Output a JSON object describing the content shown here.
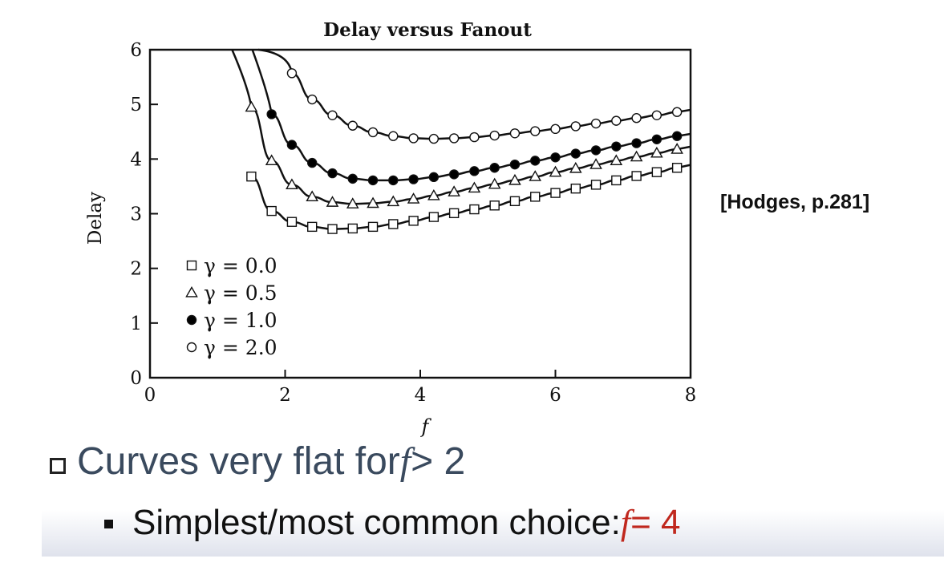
{
  "slide": {
    "citation": "[Hodges, p.281]",
    "bullet1": {
      "text": "Curves very flat for ",
      "var": "f",
      "tail": " > 2"
    },
    "bullet2": {
      "text": "Simplest/most common choice: ",
      "var": "f",
      "tail": " = 4"
    },
    "colors": {
      "heading": "#3a4a5e",
      "accent": "#c0281e"
    }
  },
  "chart_data": {
    "type": "line",
    "title": "Delay versus Fanout",
    "xlabel": "f",
    "ylabel": "Delay",
    "xlim": [
      0,
      8
    ],
    "ylim": [
      0,
      6
    ],
    "xticks": [
      0,
      2,
      4,
      6,
      8
    ],
    "yticks": [
      0,
      1,
      2,
      3,
      4,
      5,
      6
    ],
    "grid": false,
    "legend_position": "bottom-left",
    "series": [
      {
        "name": "γ = 0.0",
        "marker": "square",
        "marker_fill": "#ffffff",
        "x": [
          1.5,
          1.8,
          2.1,
          2.4,
          2.7,
          3.0,
          3.3,
          3.6,
          3.9,
          4.2,
          4.5,
          4.8,
          5.1,
          5.4,
          5.7,
          6.0,
          6.3,
          6.6,
          6.9,
          7.2,
          7.5,
          7.8
        ],
        "y": [
          3.68,
          3.05,
          2.85,
          2.76,
          2.72,
          2.73,
          2.76,
          2.81,
          2.87,
          2.94,
          3.01,
          3.08,
          3.15,
          3.23,
          3.31,
          3.38,
          3.46,
          3.53,
          3.61,
          3.69,
          3.76,
          3.84
        ]
      },
      {
        "name": "γ = 0.5",
        "marker": "triangle",
        "marker_fill": "#ffffff",
        "x": [
          1.5,
          1.8,
          2.1,
          2.4,
          2.7,
          3.0,
          3.3,
          3.6,
          3.9,
          4.2,
          4.5,
          4.8,
          5.1,
          5.4,
          5.7,
          6.0,
          6.3,
          6.6,
          6.9,
          7.2,
          7.5,
          7.8
        ],
        "y": [
          4.95,
          3.97,
          3.53,
          3.31,
          3.21,
          3.18,
          3.19,
          3.22,
          3.27,
          3.33,
          3.4,
          3.47,
          3.54,
          3.61,
          3.68,
          3.76,
          3.83,
          3.9,
          3.97,
          4.04,
          4.11,
          4.18
        ]
      },
      {
        "name": "γ = 1.0",
        "marker": "circle",
        "marker_fill": "#000000",
        "x": [
          1.8,
          2.1,
          2.4,
          2.7,
          3.0,
          3.3,
          3.6,
          3.9,
          4.2,
          4.5,
          4.8,
          5.1,
          5.4,
          5.7,
          6.0,
          6.3,
          6.6,
          6.9,
          7.2,
          7.5,
          7.8
        ],
        "y": [
          4.82,
          4.26,
          3.93,
          3.74,
          3.64,
          3.61,
          3.61,
          3.63,
          3.67,
          3.72,
          3.78,
          3.84,
          3.9,
          3.97,
          4.03,
          4.1,
          4.16,
          4.23,
          4.29,
          4.36,
          4.42
        ]
      },
      {
        "name": "γ = 2.0",
        "marker": "circle",
        "marker_fill": "#ffffff",
        "x": [
          2.1,
          2.4,
          2.7,
          3.0,
          3.3,
          3.6,
          3.9,
          4.2,
          4.5,
          4.8,
          5.1,
          5.4,
          5.7,
          6.0,
          6.3,
          6.6,
          6.9,
          7.2,
          7.5,
          7.8
        ],
        "y": [
          5.57,
          5.09,
          4.8,
          4.61,
          4.49,
          4.42,
          4.38,
          4.37,
          4.38,
          4.4,
          4.43,
          4.47,
          4.51,
          4.55,
          4.6,
          4.65,
          4.7,
          4.75,
          4.8,
          4.86
        ]
      }
    ]
  }
}
